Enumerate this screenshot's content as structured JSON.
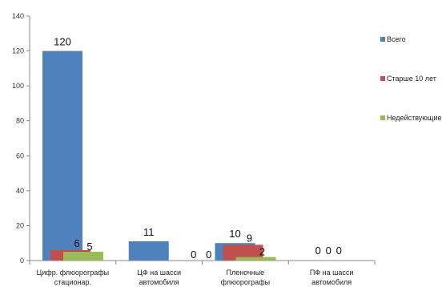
{
  "chart_data": {
    "type": "bar",
    "categories": [
      [
        "Цифр. флюорографы",
        "стационар."
      ],
      [
        "ЦФ на шасси",
        "автомобиля"
      ],
      [
        "Пленочные",
        "флюорографы"
      ],
      [
        "ПФ на шасси",
        "автомобиля"
      ]
    ],
    "series": [
      {
        "name": "Всего",
        "values": [
          120,
          11,
          10,
          0
        ],
        "color": "#4F81BD"
      },
      {
        "name": "Старше 10 лет",
        "values": [
          6,
          0,
          9,
          0
        ],
        "color": "#C0504D"
      },
      {
        "name": "Недействующие",
        "values": [
          5,
          0,
          2,
          0
        ],
        "color": "#9BBB59"
      }
    ],
    "ylim": [
      0,
      140
    ],
    "yticks": [
      0,
      20,
      40,
      60,
      80,
      100,
      120,
      140
    ],
    "grid": false,
    "legend": "right"
  }
}
